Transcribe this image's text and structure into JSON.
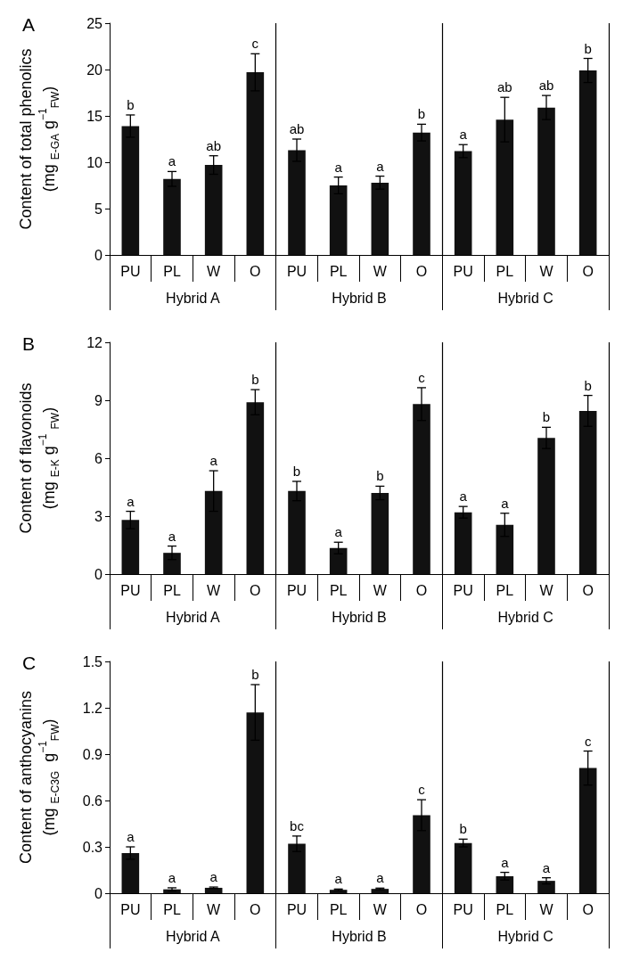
{
  "chart_data": [
    {
      "type": "bar",
      "title": "A",
      "ylabel": "Content of total phenolics\n(mg $_{E-GA}$ g$^{−1}$$_{FW}$)",
      "categories": [
        "PU",
        "PL",
        "W",
        "O",
        "PU",
        "PL",
        "W",
        "O",
        "PU",
        "PL",
        "W",
        "O"
      ],
      "ylim": [
        0,
        25
      ],
      "yticks": [
        0,
        5,
        10,
        15,
        20,
        25
      ],
      "series": [
        {
          "name": "Hybrid A",
          "color": "#111111",
          "values": [
            13.9,
            8.2,
            9.7,
            19.7,
            null,
            null,
            null,
            null,
            null,
            null,
            null,
            null
          ],
          "errors": [
            1.2,
            0.8,
            1.0,
            2.0,
            null,
            null,
            null,
            null,
            null,
            null,
            null,
            null
          ],
          "value_labels": [
            "b",
            "a",
            "ab",
            "c",
            null,
            null,
            null,
            null,
            null,
            null,
            null,
            null
          ]
        },
        {
          "name": "Hybrid B",
          "color": "#111111",
          "values": [
            null,
            null,
            null,
            null,
            11.3,
            7.5,
            7.8,
            13.2,
            null,
            null,
            null,
            null
          ],
          "errors": [
            null,
            null,
            null,
            null,
            1.2,
            0.9,
            0.7,
            0.9,
            null,
            null,
            null,
            null
          ],
          "value_labels": [
            null,
            null,
            null,
            null,
            "ab",
            "a",
            "a",
            "b",
            null,
            null,
            null,
            null
          ]
        },
        {
          "name": "Hybrid C",
          "color": "#111111",
          "values": [
            null,
            null,
            null,
            null,
            null,
            null,
            null,
            null,
            11.2,
            14.6,
            15.9,
            19.9
          ],
          "errors": [
            null,
            null,
            null,
            null,
            null,
            null,
            null,
            null,
            0.7,
            2.4,
            1.3,
            1.3
          ],
          "value_labels": [
            null,
            null,
            null,
            null,
            null,
            null,
            null,
            null,
            "a",
            "ab",
            "ab",
            "b"
          ]
        }
      ],
      "legend": false
    },
    {
      "type": "bar",
      "title": "B",
      "ylabel": "Content of flavonoids\n(mg $_{E-K}$ g$^{−1}$ $_{FW}$)",
      "categories": [
        "PU",
        "PL",
        "W",
        "O",
        "PU",
        "PL",
        "W",
        "O",
        "PU",
        "PL",
        "W",
        "O"
      ],
      "ylim": [
        0,
        12
      ],
      "yticks": [
        0,
        3,
        6,
        9,
        12
      ],
      "series": [
        {
          "name": "Hybrid A",
          "color": "#111111",
          "values": [
            2.8,
            1.1,
            4.3,
            8.9,
            null,
            null,
            null,
            null,
            null,
            null,
            null,
            null
          ],
          "errors": [
            0.45,
            0.35,
            1.05,
            0.65,
            null,
            null,
            null,
            null,
            null,
            null,
            null,
            null
          ],
          "value_labels": [
            "a",
            "a",
            "a",
            "b",
            null,
            null,
            null,
            null,
            null,
            null,
            null,
            null
          ]
        },
        {
          "name": "Hybrid B",
          "color": "#111111",
          "values": [
            null,
            null,
            null,
            null,
            4.3,
            1.35,
            4.2,
            8.8,
            null,
            null,
            null,
            null
          ],
          "errors": [
            null,
            null,
            null,
            null,
            0.5,
            0.3,
            0.35,
            0.85,
            null,
            null,
            null,
            null
          ],
          "value_labels": [
            null,
            null,
            null,
            null,
            "b",
            "a",
            "b",
            "c",
            null,
            null,
            null,
            null
          ]
        },
        {
          "name": "Hybrid C",
          "color": "#111111",
          "values": [
            null,
            null,
            null,
            null,
            null,
            null,
            null,
            null,
            3.2,
            2.55,
            7.05,
            8.45
          ],
          "errors": [
            null,
            null,
            null,
            null,
            null,
            null,
            null,
            null,
            0.3,
            0.6,
            0.55,
            0.8
          ],
          "value_labels": [
            null,
            null,
            null,
            null,
            null,
            null,
            null,
            null,
            "a",
            "a",
            "b",
            "b"
          ]
        }
      ],
      "legend": false
    },
    {
      "type": "bar",
      "title": "C",
      "ylabel": "Content of anthocyanins\n(mg $_{E-C3G}$  g$^{−1}$$_{FW}$)",
      "categories": [
        "PU",
        "PL",
        "W",
        "O",
        "PU",
        "PL",
        "W",
        "O",
        "PU",
        "PL",
        "W",
        "O"
      ],
      "ylim": [
        0,
        1.5
      ],
      "yticks": [
        0,
        0.3,
        0.6,
        0.9,
        1.2,
        1.5
      ],
      "series": [
        {
          "name": "Hybrid A",
          "color": "#111111",
          "values": [
            0.26,
            0.025,
            0.035,
            1.17,
            null,
            null,
            null,
            null,
            null,
            null,
            null,
            null
          ],
          "errors": [
            0.04,
            0.01,
            0.005,
            0.18,
            null,
            null,
            null,
            null,
            null,
            null,
            null,
            null
          ],
          "value_labels": [
            "a",
            "a",
            "a",
            "b",
            null,
            null,
            null,
            null,
            null,
            null,
            null,
            null
          ]
        },
        {
          "name": "Hybrid B",
          "color": "#111111",
          "values": [
            null,
            null,
            null,
            null,
            0.32,
            0.022,
            0.028,
            0.505,
            null,
            null,
            null,
            null
          ],
          "errors": [
            null,
            null,
            null,
            null,
            0.05,
            0.005,
            0.005,
            0.1,
            null,
            null,
            null,
            null
          ],
          "value_labels": [
            null,
            null,
            null,
            null,
            "bc",
            "a",
            "a",
            "c",
            null,
            null,
            null,
            null
          ]
        },
        {
          "name": "Hybrid C",
          "color": "#111111",
          "values": [
            null,
            null,
            null,
            null,
            null,
            null,
            null,
            null,
            0.325,
            0.11,
            0.08,
            0.81
          ],
          "errors": [
            null,
            null,
            null,
            null,
            null,
            null,
            null,
            null,
            0.025,
            0.025,
            0.02,
            0.11
          ],
          "value_labels": [
            null,
            null,
            null,
            null,
            null,
            null,
            null,
            null,
            "b",
            "a",
            "a",
            "c"
          ]
        }
      ],
      "legend": false
    }
  ]
}
